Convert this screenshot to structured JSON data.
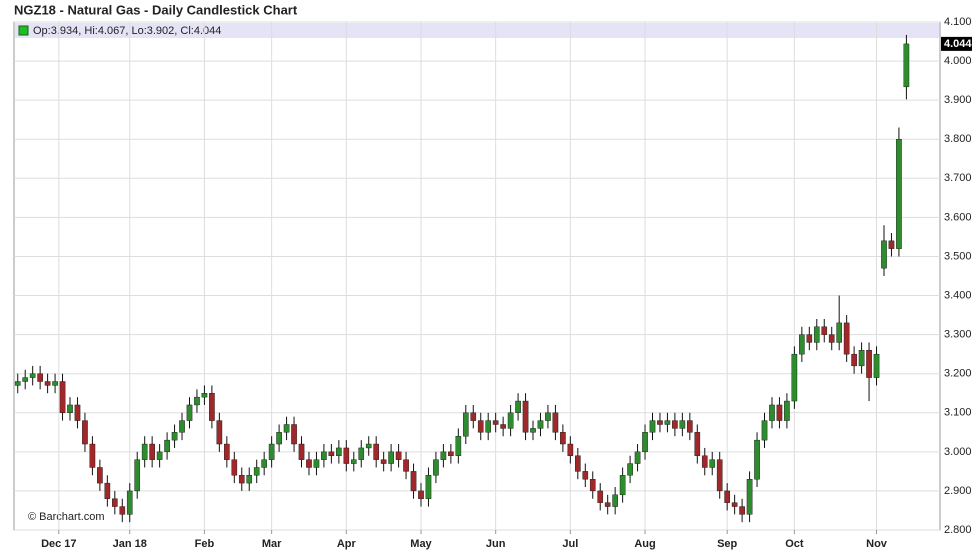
{
  "chart_data": {
    "type": "candlestick",
    "title": "NGZ18 - Natural Gas - Daily Candlestick Chart",
    "legend": "Op:3.934, Hi:4.067, Lo:3.902, Cl:4.044",
    "watermark": "© Barchart.com",
    "up_color": "#2e8b2e",
    "down_color": "#a0282a",
    "wick_color": "#111111",
    "grid": true,
    "categories": [
      null,
      null,
      null,
      null,
      null,
      null,
      null,
      null,
      null,
      null,
      null,
      null,
      null,
      null,
      null,
      null,
      null,
      null,
      null,
      null,
      null,
      null,
      null,
      null,
      null,
      null,
      null,
      null,
      null,
      null,
      null,
      null,
      null,
      null,
      null,
      null,
      null,
      null,
      null,
      null,
      null,
      null,
      null,
      null,
      null,
      null,
      null,
      null,
      null,
      null,
      null,
      null,
      null,
      null,
      null,
      null,
      null,
      null,
      null,
      null,
      null,
      null,
      null,
      null,
      null,
      null,
      null,
      null,
      null,
      null,
      null,
      null,
      null,
      null,
      null,
      null,
      null,
      null,
      null,
      null,
      null,
      null,
      null,
      null,
      null,
      null,
      null,
      null,
      null,
      null,
      null,
      null,
      null,
      null,
      null,
      null,
      null,
      null,
      null,
      null,
      null,
      null,
      null,
      null,
      null,
      null,
      null,
      null,
      null,
      null,
      null,
      null,
      null,
      null,
      null,
      null,
      null,
      null,
      null,
      null
    ],
    "open": [
      3.17,
      3.18,
      3.19,
      3.2,
      3.18,
      3.17,
      3.18,
      3.1,
      3.12,
      3.08,
      3.02,
      2.96,
      2.92,
      2.88,
      2.86,
      2.84,
      2.9,
      2.98,
      3.02,
      2.98,
      3.0,
      3.03,
      3.05,
      3.08,
      3.12,
      3.14,
      3.15,
      3.08,
      3.02,
      2.98,
      2.94,
      2.92,
      2.94,
      2.96,
      2.98,
      3.02,
      3.05,
      3.07,
      3.02,
      2.98,
      2.96,
      2.98,
      3.0,
      2.99,
      3.01,
      2.97,
      2.98,
      3.01,
      3.02,
      2.98,
      2.97,
      3.0,
      2.98,
      2.95,
      2.9,
      2.88,
      2.94,
      2.98,
      3.0,
      2.99,
      3.04,
      3.1,
      3.08,
      3.05,
      3.08,
      3.07,
      3.06,
      3.1,
      3.13,
      3.05,
      3.06,
      3.08,
      3.1,
      3.05,
      3.02,
      2.99,
      2.95,
      2.93,
      2.9,
      2.87,
      2.86,
      2.89,
      2.94,
      2.97,
      3.0,
      3.05,
      3.08,
      3.07,
      3.08,
      3.06,
      3.08,
      3.05,
      2.99,
      2.96,
      2.98,
      2.9,
      2.87,
      2.86,
      2.84,
      2.93,
      3.03,
      3.08,
      3.12,
      3.08,
      3.13,
      3.25,
      3.3,
      3.28,
      3.32,
      3.3,
      3.28,
      3.33,
      3.25,
      3.22,
      3.26,
      3.19,
      3.47,
      3.54,
      3.52,
      3.934
    ],
    "high": [
      3.2,
      3.21,
      3.22,
      3.22,
      3.2,
      3.2,
      3.2,
      3.14,
      3.14,
      3.1,
      3.04,
      2.98,
      2.94,
      2.9,
      2.88,
      2.92,
      3.0,
      3.04,
      3.04,
      3.02,
      3.05,
      3.07,
      3.1,
      3.14,
      3.16,
      3.17,
      3.17,
      3.1,
      3.04,
      3.0,
      2.96,
      2.96,
      2.98,
      3.0,
      3.04,
      3.07,
      3.09,
      3.09,
      3.04,
      3.0,
      3.0,
      3.02,
      3.02,
      3.03,
      3.03,
      3.0,
      3.03,
      3.04,
      3.04,
      3.0,
      3.02,
      3.02,
      3.0,
      2.97,
      2.92,
      2.96,
      3.0,
      3.02,
      3.02,
      3.06,
      3.12,
      3.12,
      3.1,
      3.1,
      3.1,
      3.09,
      3.12,
      3.15,
      3.15,
      3.08,
      3.1,
      3.12,
      3.12,
      3.07,
      3.04,
      3.01,
      2.97,
      2.95,
      2.92,
      2.89,
      2.91,
      2.96,
      2.99,
      3.02,
      3.07,
      3.1,
      3.1,
      3.1,
      3.1,
      3.1,
      3.1,
      3.07,
      3.01,
      3.0,
      3.0,
      2.92,
      2.89,
      2.88,
      2.95,
      3.05,
      3.1,
      3.14,
      3.14,
      3.15,
      3.27,
      3.32,
      3.32,
      3.34,
      3.34,
      3.32,
      3.4,
      3.35,
      3.27,
      3.28,
      3.28,
      3.27,
      3.58,
      3.56,
      3.83,
      4.067
    ],
    "low": [
      3.15,
      3.16,
      3.17,
      3.16,
      3.15,
      3.15,
      3.08,
      3.08,
      3.06,
      3.0,
      2.94,
      2.9,
      2.86,
      2.84,
      2.82,
      2.82,
      2.88,
      2.96,
      2.96,
      2.96,
      2.98,
      3.01,
      3.03,
      3.06,
      3.1,
      3.12,
      3.06,
      3.0,
      2.96,
      2.92,
      2.9,
      2.9,
      2.92,
      2.94,
      2.96,
      3.0,
      3.03,
      3.0,
      2.96,
      2.94,
      2.94,
      2.96,
      2.97,
      2.97,
      2.95,
      2.95,
      2.96,
      2.99,
      2.96,
      2.95,
      2.95,
      2.96,
      2.93,
      2.88,
      2.86,
      2.86,
      2.92,
      2.96,
      2.97,
      2.97,
      3.02,
      3.06,
      3.03,
      3.03,
      3.05,
      3.04,
      3.04,
      3.08,
      3.03,
      3.03,
      3.04,
      3.06,
      3.03,
      3.0,
      2.97,
      2.93,
      2.91,
      2.88,
      2.85,
      2.84,
      2.84,
      2.87,
      2.92,
      2.95,
      2.98,
      3.03,
      3.05,
      3.05,
      3.04,
      3.04,
      3.03,
      2.97,
      2.94,
      2.94,
      2.88,
      2.85,
      2.84,
      2.82,
      2.82,
      2.91,
      3.01,
      3.06,
      3.06,
      3.06,
      3.11,
      3.23,
      3.26,
      3.26,
      3.28,
      3.26,
      3.26,
      3.23,
      3.2,
      3.2,
      3.13,
      3.17,
      3.45,
      3.5,
      3.5,
      3.902
    ],
    "close": [
      3.18,
      3.19,
      3.2,
      3.18,
      3.17,
      3.18,
      3.1,
      3.12,
      3.08,
      3.02,
      2.96,
      2.92,
      2.88,
      2.86,
      2.84,
      2.9,
      2.98,
      3.02,
      2.98,
      3.0,
      3.03,
      3.05,
      3.08,
      3.12,
      3.14,
      3.15,
      3.08,
      3.02,
      2.98,
      2.94,
      2.92,
      2.94,
      2.96,
      2.98,
      3.02,
      3.05,
      3.07,
      3.02,
      2.98,
      2.96,
      2.98,
      3.0,
      2.99,
      3.01,
      2.97,
      2.98,
      3.01,
      3.02,
      2.98,
      2.97,
      3.0,
      2.98,
      2.95,
      2.9,
      2.88,
      2.94,
      2.98,
      3.0,
      2.99,
      3.04,
      3.1,
      3.08,
      3.05,
      3.08,
      3.07,
      3.06,
      3.1,
      3.13,
      3.05,
      3.06,
      3.08,
      3.1,
      3.05,
      3.02,
      2.99,
      2.95,
      2.93,
      2.9,
      2.87,
      2.86,
      2.89,
      2.94,
      2.97,
      3.0,
      3.05,
      3.08,
      3.07,
      3.08,
      3.06,
      3.08,
      3.05,
      2.99,
      2.96,
      2.98,
      2.9,
      2.87,
      2.86,
      2.84,
      2.93,
      3.03,
      3.08,
      3.12,
      3.08,
      3.13,
      3.25,
      3.3,
      3.28,
      3.32,
      3.3,
      3.28,
      3.33,
      3.25,
      3.22,
      3.26,
      3.19,
      3.25,
      3.54,
      3.52,
      3.8,
      4.044
    ],
    "xlim": [
      -0.5,
      123.5
    ],
    "xticks": [
      {
        "value": 5.5,
        "label": "Dec 17"
      },
      {
        "value": 15,
        "label": "Jan 18"
      },
      {
        "value": 25,
        "label": "Feb"
      },
      {
        "value": 34,
        "label": "Mar"
      },
      {
        "value": 44,
        "label": "Apr"
      },
      {
        "value": 54,
        "label": "May"
      },
      {
        "value": 64,
        "label": "Jun"
      },
      {
        "value": 74,
        "label": "Jul"
      },
      {
        "value": 84,
        "label": "Aug"
      },
      {
        "value": 95,
        "label": "Sep"
      },
      {
        "value": 104,
        "label": "Oct"
      },
      {
        "value": 115,
        "label": "Nov"
      }
    ],
    "ylim": [
      2.8,
      4.1
    ],
    "yticks": [
      {
        "value": 2.8,
        "label": "2.800"
      },
      {
        "value": 2.9,
        "label": "2.900"
      },
      {
        "value": 3.0,
        "label": "3.000"
      },
      {
        "value": 3.1,
        "label": "3.100"
      },
      {
        "value": 3.2,
        "label": "3.200"
      },
      {
        "value": 3.3,
        "label": "3.300"
      },
      {
        "value": 3.4,
        "label": "3.400"
      },
      {
        "value": 3.5,
        "label": "3.500"
      },
      {
        "value": 3.6,
        "label": "3.600"
      },
      {
        "value": 3.7,
        "label": "3.700"
      },
      {
        "value": 3.8,
        "label": "3.800"
      },
      {
        "value": 3.9,
        "label": "3.900"
      },
      {
        "value": 4.0,
        "label": "4.000"
      },
      {
        "value": 4.1,
        "label": "4.100"
      }
    ]
  }
}
